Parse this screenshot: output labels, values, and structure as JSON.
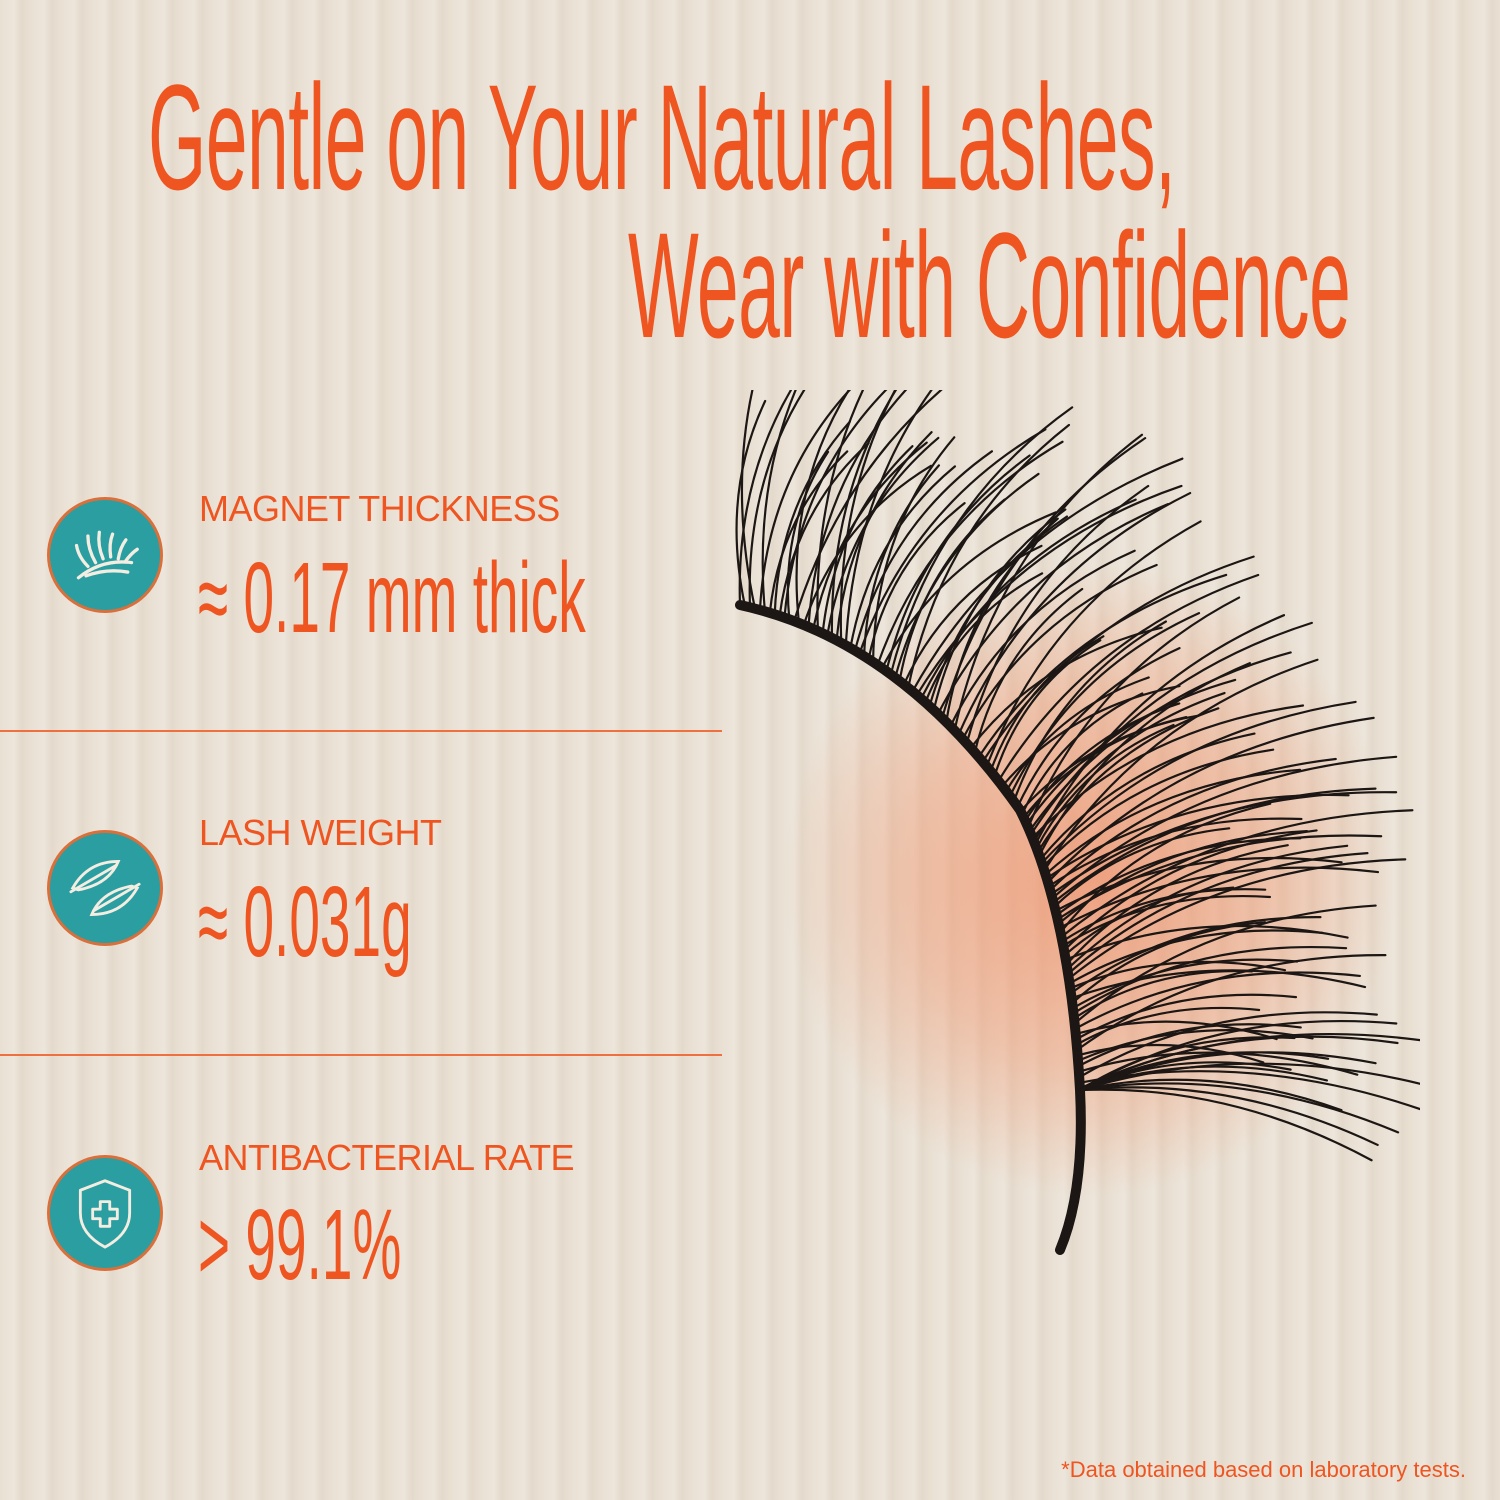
{
  "headline": {
    "line1": "Gentle on Your Natural Lashes,",
    "line2": "Wear with Confidence"
  },
  "features": [
    {
      "icon": "eyelash-icon",
      "label": "MAGNET THICKNESS",
      "value": "≈ 0.17 mm thick"
    },
    {
      "icon": "feather-icon",
      "label": "LASH WEIGHT",
      "value": "≈ 0.031g"
    },
    {
      "icon": "shield-cross-icon",
      "label": "ANTIBACTERIAL RATE",
      "value": "> 99.1%"
    }
  ],
  "footnote": "*Data obtained based on laboratory tests.",
  "colors": {
    "accent": "#ee5520",
    "icon_bg": "#2a9ea0",
    "background": "#e9e0d3"
  }
}
